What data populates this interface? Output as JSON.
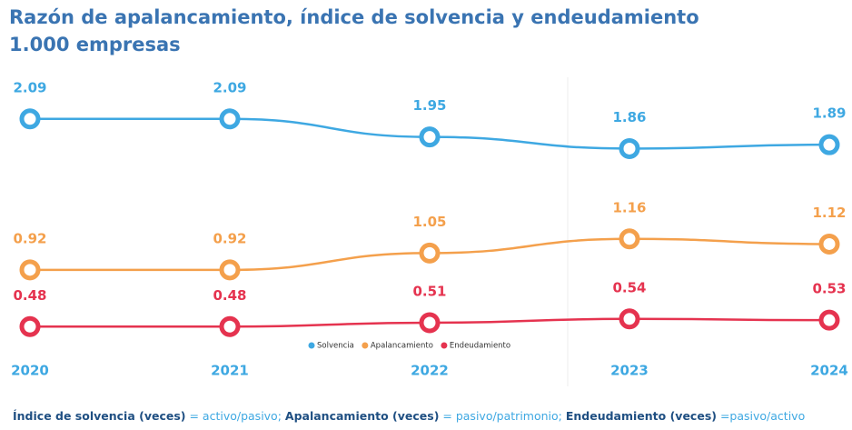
{
  "chart_data": {
    "type": "line",
    "title": "Razón de apalancamiento, índice de solvencia y endeudamiento",
    "subtitle": "1.000 empresas",
    "categories": [
      "2020",
      "2021",
      "2022",
      "2023",
      "2024"
    ],
    "series": [
      {
        "name": "Solvencia",
        "color": "#3ea8e2",
        "values": [
          2.09,
          2.09,
          1.95,
          1.86,
          1.89
        ]
      },
      {
        "name": "Apalancamiento",
        "color": "#f4a04c",
        "values": [
          0.92,
          0.92,
          1.05,
          1.16,
          1.12
        ]
      },
      {
        "name": "Endeudamiento",
        "color": "#e5334f",
        "values": [
          0.48,
          0.48,
          0.51,
          0.54,
          0.53
        ]
      }
    ],
    "ylim": [
      0.2,
      2.3
    ],
    "legend": "bottom",
    "footnote": [
      {
        "text": "Índice de solvencia (veces)",
        "bold": true
      },
      {
        "text": " = activo/pasivo; ",
        "bold": false
      },
      {
        "text": "Apalancamiento (veces)",
        "bold": true
      },
      {
        "text": " = pasivo/patrimonio; ",
        "bold": false
      },
      {
        "text": "Endeudamiento (veces)",
        "bold": true
      },
      {
        "text": " =pasivo/activo",
        "bold": false
      }
    ]
  }
}
